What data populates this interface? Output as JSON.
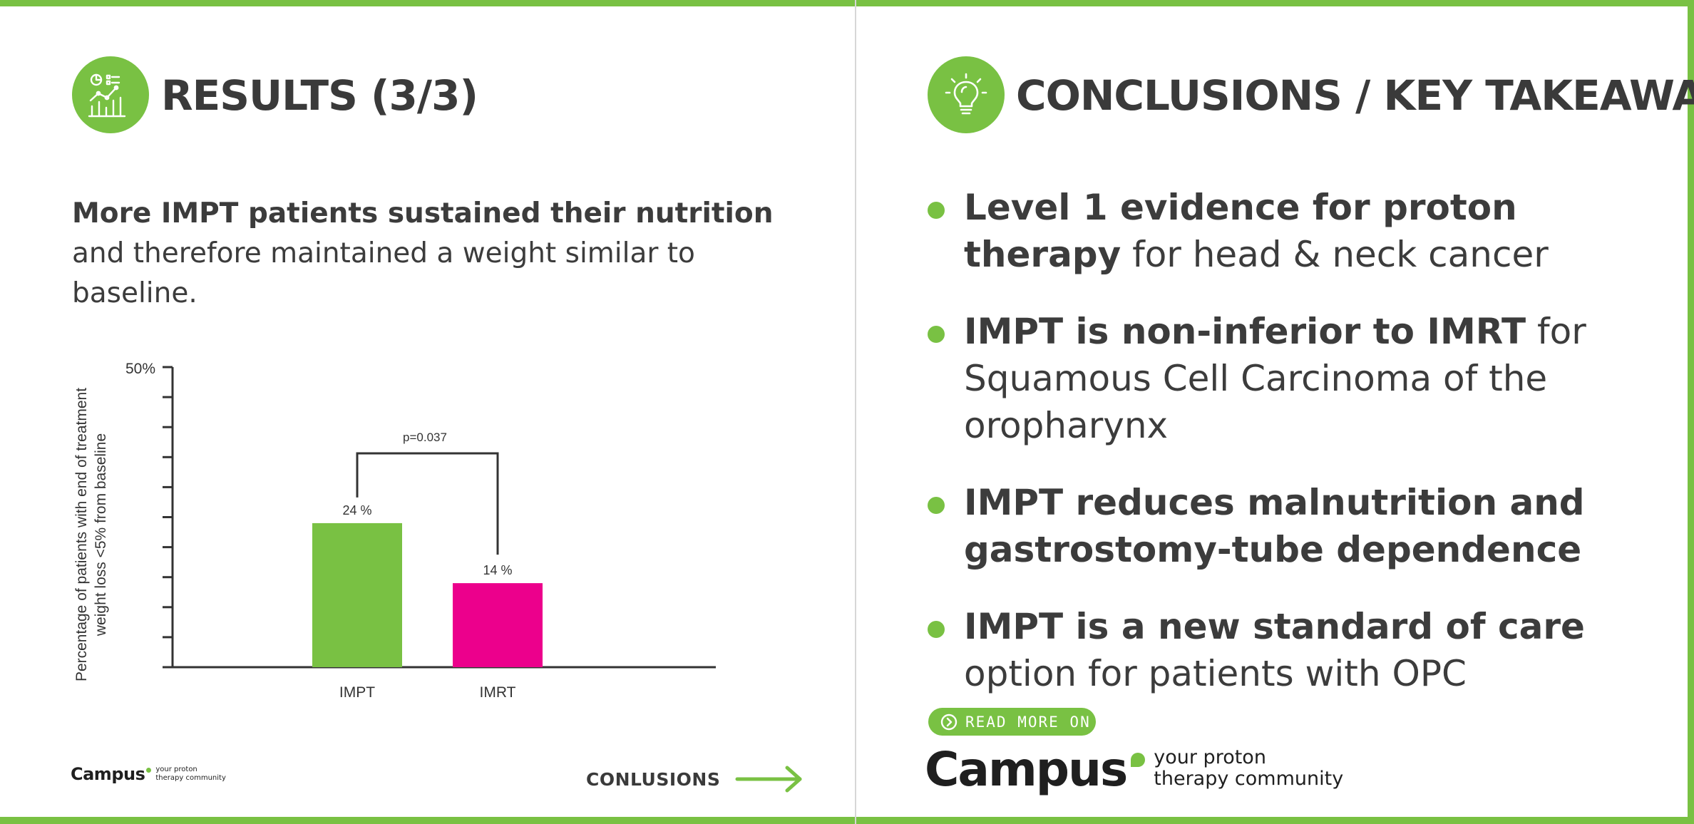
{
  "colors": {
    "accent": "#79c143",
    "impt": "#79c143",
    "imrt": "#ec008c",
    "text": "#3c3c3c"
  },
  "results": {
    "icon": "chart-analytics-icon",
    "title": "RESULTS (3/3)",
    "intro_bold": "More IMPT patients sustained their nutrition",
    "intro_rest": " and therefore maintained a weight similar to baseline."
  },
  "chart_data": {
    "type": "bar",
    "categories": [
      "IMPT",
      "IMRT"
    ],
    "values": [
      24,
      14
    ],
    "value_labels": [
      "24 %",
      "14 %"
    ],
    "ylabel_line1": "Percentage of patients with end of treatment",
    "ylabel_line2": "weight loss <5% from baseline",
    "ytick_label": "50%",
    "ylim": [
      0,
      50
    ],
    "ytick_step": 5,
    "significance_label": "p=0.037",
    "bar_colors": [
      "#79c143",
      "#ec008c"
    ]
  },
  "footer_left": {
    "brand": "Campus",
    "tagline_1": "your proton",
    "tagline_2": "therapy community",
    "next_label": "CONLUSIONS",
    "next_icon": "arrow-right-icon"
  },
  "conclusions": {
    "icon": "lightbulb-icon",
    "title": "CONCLUSIONS / KEY TAKEAWAYS",
    "items": [
      {
        "bold": "Level 1 evidence for proton therapy",
        "rest": " for head & neck cancer"
      },
      {
        "bold": "IMPT is non-inferior to IMRT",
        "rest": " for Squamous Cell Carcinoma of the oropharynx"
      },
      {
        "bold": "IMPT reduces malnutrition and gastrostomy-tube dependence",
        "rest": ""
      },
      {
        "bold": "IMPT is a new standard of care",
        "rest": " option for patients with OPC"
      }
    ]
  },
  "footer_right": {
    "read_more_label": "READ MORE ON",
    "read_more_icon": "chevron-circle-right-icon",
    "brand": "Campus",
    "tagline_1": "your proton",
    "tagline_2": "therapy community"
  }
}
